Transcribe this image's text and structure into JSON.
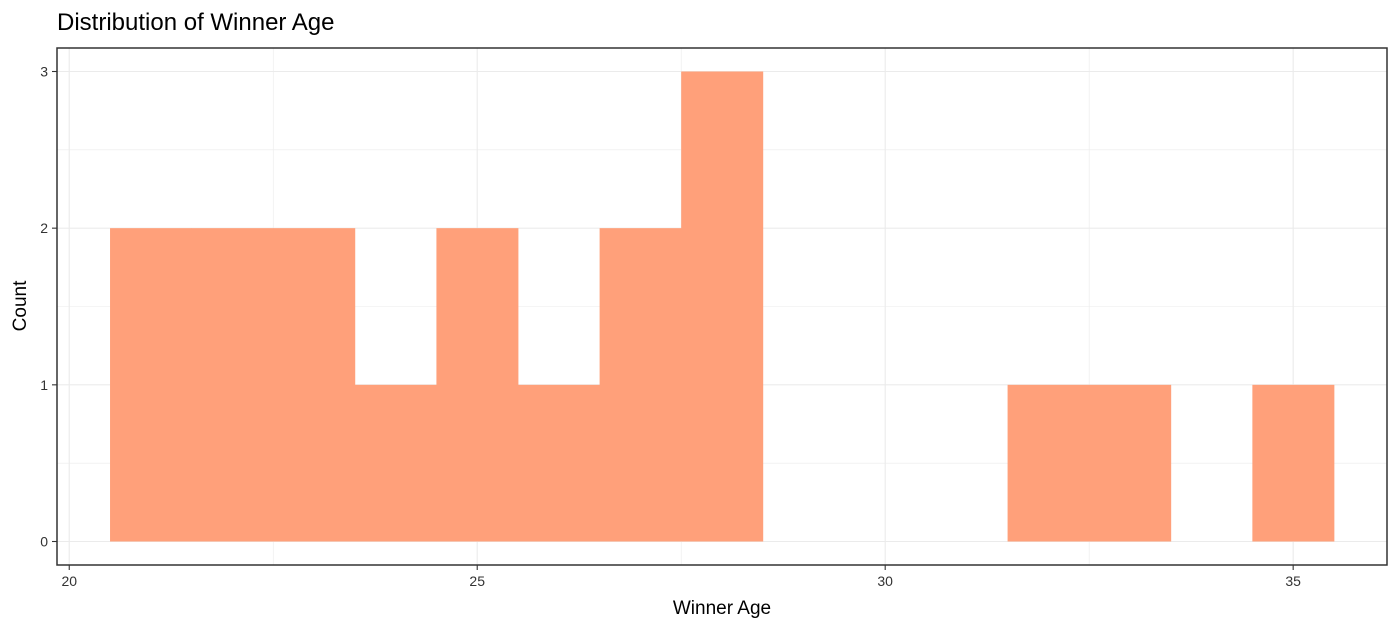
{
  "chart_data": {
    "type": "bar",
    "title": "Distribution of  Winner Age",
    "xlabel": "Winner Age",
    "ylabel": "Count",
    "bin_width": 1,
    "bins": [
      {
        "start": 20.5,
        "end": 21.5,
        "count": 2
      },
      {
        "start": 21.5,
        "end": 22.5,
        "count": 2
      },
      {
        "start": 22.5,
        "end": 23.5,
        "count": 2
      },
      {
        "start": 23.5,
        "end": 24.5,
        "count": 1
      },
      {
        "start": 24.5,
        "end": 25.5,
        "count": 2
      },
      {
        "start": 25.5,
        "end": 26.5,
        "count": 1
      },
      {
        "start": 26.5,
        "end": 27.5,
        "count": 2
      },
      {
        "start": 27.5,
        "end": 28.5,
        "count": 3
      },
      {
        "start": 28.5,
        "end": 29.5,
        "count": 0
      },
      {
        "start": 29.5,
        "end": 30.5,
        "count": 0
      },
      {
        "start": 30.5,
        "end": 31.5,
        "count": 0
      },
      {
        "start": 31.5,
        "end": 32.5,
        "count": 1
      },
      {
        "start": 32.5,
        "end": 33.5,
        "count": 1
      },
      {
        "start": 33.5,
        "end": 34.5,
        "count": 0
      },
      {
        "start": 34.5,
        "end": 35.5,
        "count": 1
      }
    ],
    "xlim": [
      19.85,
      36.15
    ],
    "ylim": [
      -0.15,
      3.15
    ],
    "x_ticks": [
      20,
      25,
      30,
      35
    ],
    "x_tick_labels": [
      "20",
      "25",
      "30",
      "35"
    ],
    "y_ticks": [
      0,
      1,
      2,
      3
    ],
    "y_tick_labels": [
      "0",
      "1",
      "2",
      "3"
    ],
    "grid": true,
    "bar_color": "#FFA07A",
    "grid_color": "#EBEBEB",
    "panel_border_color": "#333333"
  }
}
